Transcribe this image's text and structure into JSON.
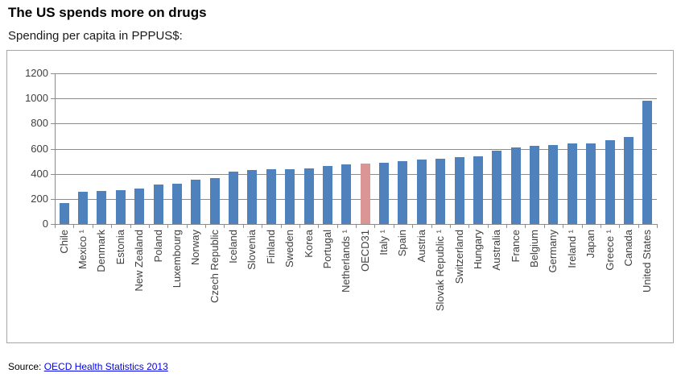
{
  "page": {
    "title": "The US spends more on drugs",
    "subtitle": "Spending per capita in PPPUS$:",
    "source_label": "Source:",
    "source_link_text": "OECD Health Statistics 2013"
  },
  "colors": {
    "bar": "#4F81BD",
    "highlight_bar": "#D99694",
    "gridline": "#8C8C8C",
    "chart_border": "#A6A6A6",
    "axis_text": "#3F3F3F",
    "title_text": "#000000",
    "link": "#0000EE"
  },
  "chart_data": {
    "type": "bar",
    "title": "The US spends more on drugs",
    "subtitle": "Spending per capita in PPPUS$:",
    "xlabel": "",
    "ylabel": "",
    "ylim": [
      0,
      1200
    ],
    "yticks": [
      0,
      200,
      400,
      600,
      800,
      1000,
      1200
    ],
    "grid": "horizontal",
    "legend_position": "none",
    "highlight_category": "OECD31",
    "categories": [
      "Chile",
      "Mexico ¹",
      "Denmark",
      "Estonia",
      "New Zealand",
      "Poland",
      "Luxembourg",
      "Norway",
      "Czech Republic",
      "Iceland",
      "Slovenia",
      "Finland",
      "Sweden",
      "Korea",
      "Portugal",
      "Netherlands ¹",
      "OECD31",
      "Italy ¹",
      "Spain",
      "Austria",
      "Slovak Republic ¹",
      "Switzerland",
      "Hungary",
      "Australia",
      "France",
      "Belgium",
      "Germany",
      "Ireland ¹",
      "Japan",
      "Greece ¹",
      "Canada",
      "United States"
    ],
    "values": [
      170,
      258,
      264,
      272,
      285,
      313,
      319,
      352,
      369,
      417,
      433,
      434,
      438,
      446,
      462,
      476,
      484,
      489,
      499,
      513,
      521,
      530,
      537,
      581,
      607,
      622,
      627,
      641,
      643,
      666,
      696,
      981
    ]
  }
}
